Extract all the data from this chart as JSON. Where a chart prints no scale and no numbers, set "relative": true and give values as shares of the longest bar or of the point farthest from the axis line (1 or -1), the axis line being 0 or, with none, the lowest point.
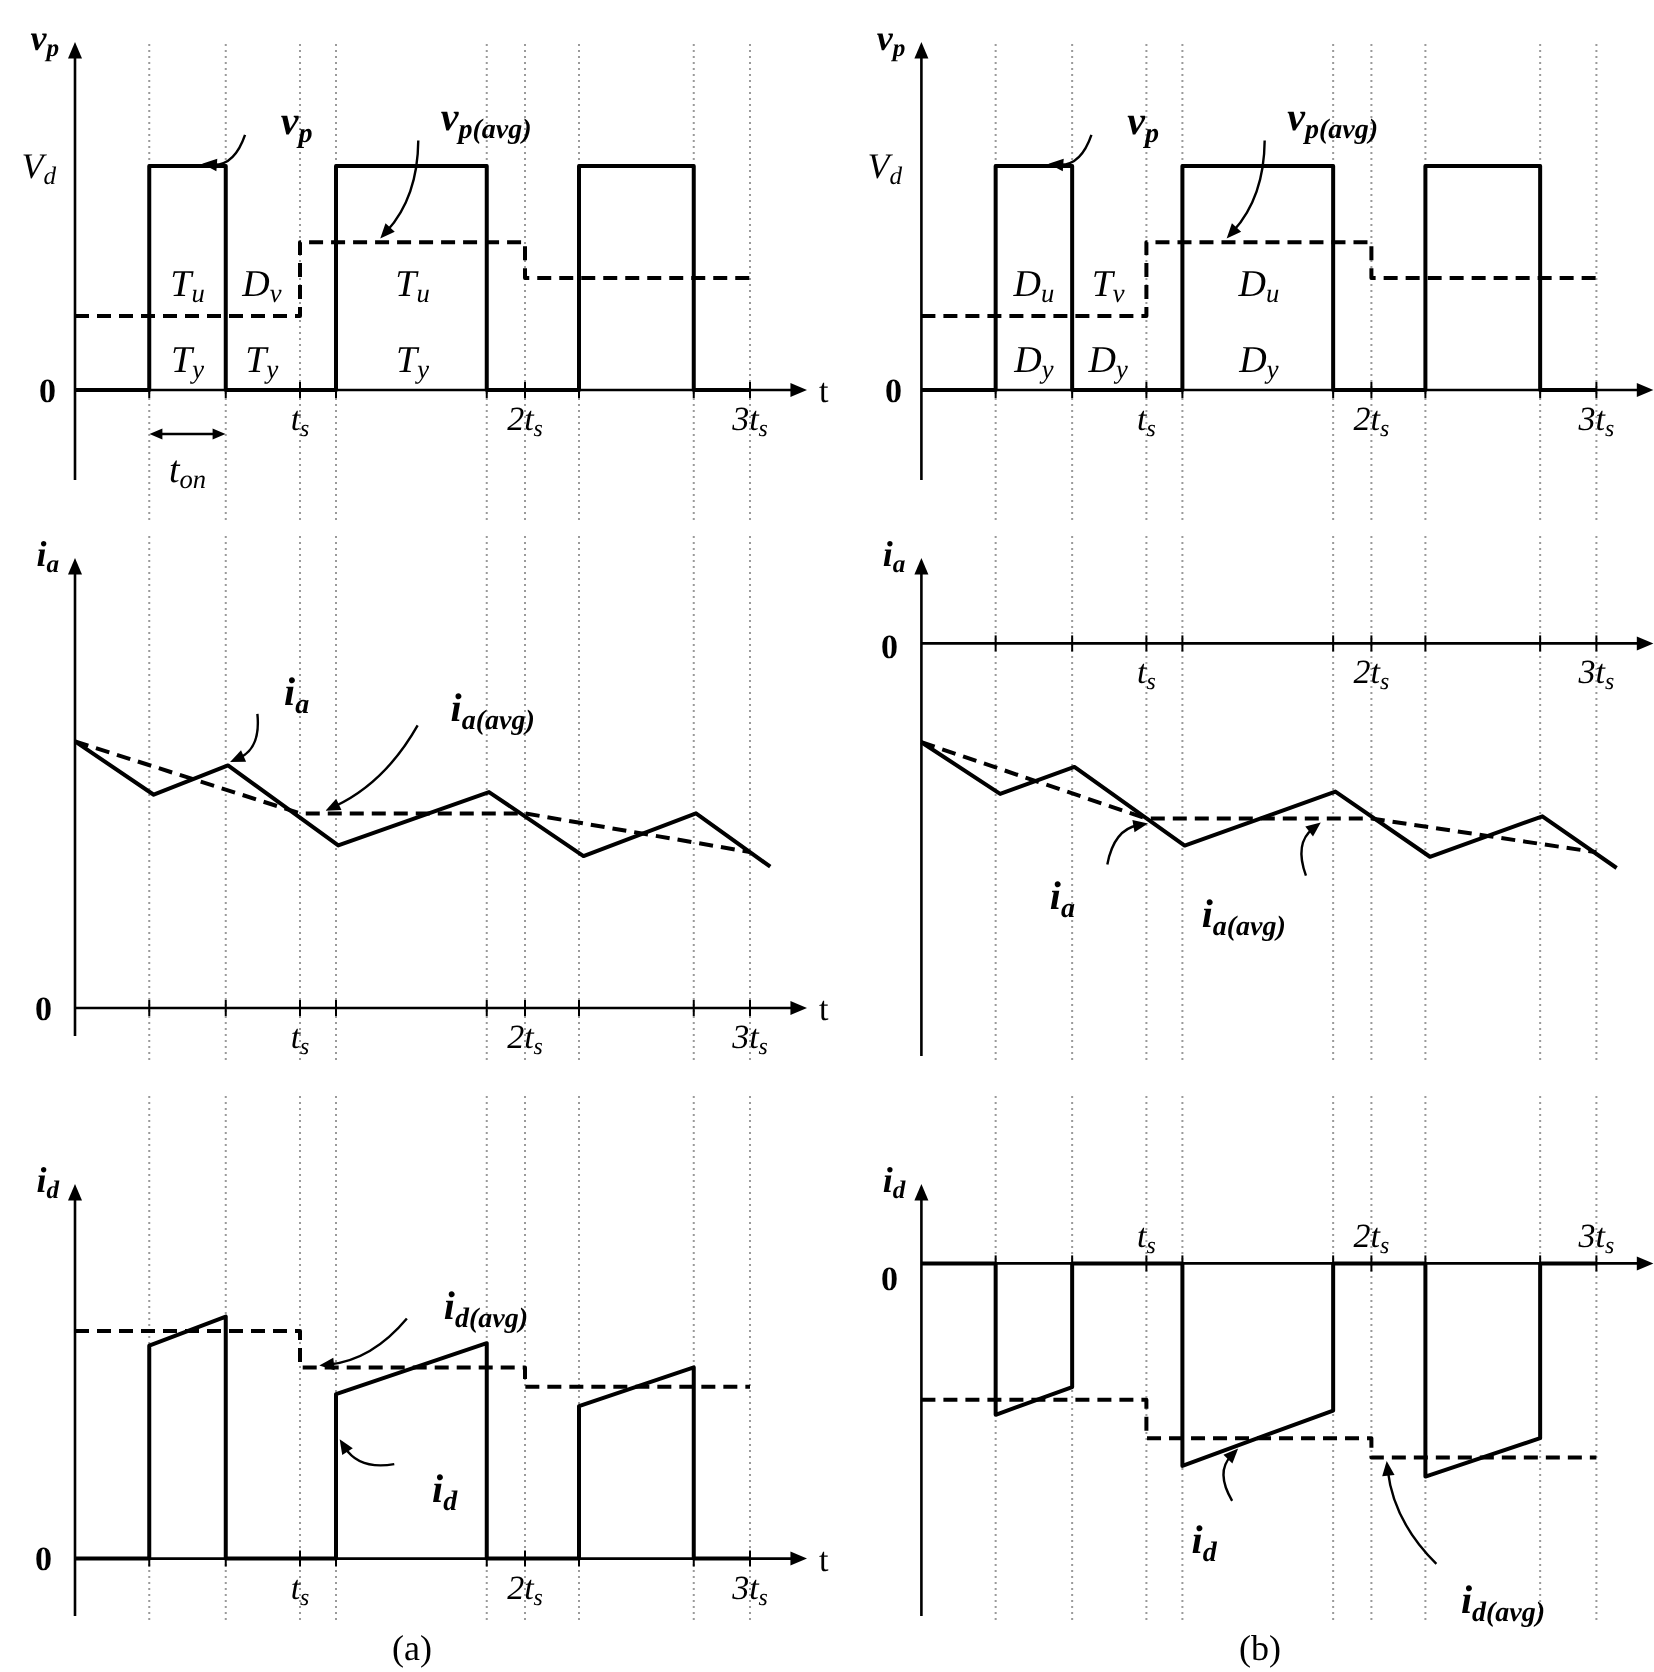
{
  "chart_data": [
    {
      "type": "line",
      "xlabel": "t",
      "ylabel": "v$_{p}$",
      "xlim": [
        0,
        3.2
      ],
      "relative": true,
      "grid": "x",
      "xticks": [
        {
          "value": 0.33,
          "label": null
        },
        {
          "value": 0.67,
          "label": null
        },
        {
          "value": 1,
          "label": "t$_{s}$"
        },
        {
          "value": 1.16,
          "label": null
        },
        {
          "value": 1.83,
          "label": null
        },
        {
          "value": 2,
          "label": "2t$_{s}$"
        },
        {
          "value": 2.24,
          "label": null
        },
        {
          "value": 2.75,
          "label": null
        },
        {
          "value": 3,
          "label": "3t$_{s}$"
        }
      ],
      "series": [
        {
          "color": "#000000",
          "line_style": "solid",
          "x": [
            0,
            0.33,
            0.33,
            0.67,
            0.67,
            1.16,
            1.16,
            1.83,
            1.83,
            2.24,
            2.24,
            2.75,
            2.75,
            3
          ],
          "values": [
            0,
            0,
            1,
            1,
            0,
            0,
            1,
            1,
            0,
            0,
            1,
            1,
            0,
            0
          ]
        },
        {
          "color": "#000000",
          "line_style": "dashed",
          "x": [
            0,
            1,
            1,
            2,
            2,
            3
          ],
          "values": [
            0.33,
            0.33,
            0.66,
            0.66,
            0.5,
            0.5
          ]
        }
      ],
      "annotations": [
        {
          "text": "v$_{p}$",
          "x": 0.55,
          "y": 1
        },
        {
          "text": "v$_{p(avg)}$",
          "x": 1.35,
          "y": 0.66
        },
        "V$_{d}$",
        "0",
        "T$_{u}$",
        "D$_{v}$",
        "T$_{u}$",
        "T$_{y}$",
        "T$_{y}$",
        "T$_{y}$",
        "t$_{on}$"
      ]
    },
    {
      "type": "line",
      "xlabel": "t",
      "ylabel": "i$_{a}$",
      "xlim": [
        0,
        3.2
      ],
      "relative": true,
      "grid": "x",
      "xticks": [
        {
          "value": 0.33,
          "label": null
        },
        {
          "value": 0.67,
          "label": null
        },
        {
          "value": 1,
          "label": "t$_{s}$"
        },
        {
          "value": 1.16,
          "label": null
        },
        {
          "value": 1.83,
          "label": null
        },
        {
          "value": 2,
          "label": "2t$_{s}$"
        },
        {
          "value": 2.24,
          "label": null
        },
        {
          "value": 2.75,
          "label": null
        },
        {
          "value": 3,
          "label": "3t$_{s}$"
        }
      ],
      "series": [
        {
          "color": "#000000",
          "line_style": "solid",
          "x": [
            0,
            0.35,
            0.68,
            1.17,
            1.84,
            2.26,
            2.76,
            3.09
          ],
          "values": [
            1,
            0.8,
            0.91,
            0.61,
            0.81,
            0.57,
            0.73,
            0.53
          ]
        },
        {
          "color": "#000000",
          "line_style": "dashed",
          "x": [
            0,
            1,
            2,
            3
          ],
          "values": [
            1,
            0.73,
            0.73,
            0.585
          ]
        }
      ],
      "annotations": [
        {
          "text": "i$_{a}$",
          "x": 0.68,
          "y": 0.91
        },
        {
          "text": "i$_{a(avg)}$",
          "x": 1.1,
          "y": 0.73
        },
        "0"
      ]
    },
    {
      "type": "line",
      "xlabel": "t",
      "ylabel": "i$_{d}$",
      "xlim": [
        0,
        3.2
      ],
      "relative": true,
      "grid": "x",
      "xticks": [
        {
          "value": 0.33,
          "label": null
        },
        {
          "value": 0.67,
          "label": null
        },
        {
          "value": 1,
          "label": "t$_{s}$"
        },
        {
          "value": 1.16,
          "label": null
        },
        {
          "value": 1.83,
          "label": null
        },
        {
          "value": 2,
          "label": "2t$_{s}$"
        },
        {
          "value": 2.24,
          "label": null
        },
        {
          "value": 2.75,
          "label": null
        },
        {
          "value": 3,
          "label": "3t$_{s}$"
        }
      ],
      "series": [
        {
          "color": "#000000",
          "line_style": "solid",
          "x": [
            0,
            0.33,
            0.33,
            0.67,
            0.67,
            1.16,
            1.16,
            1.83,
            1.83,
            2.24,
            2.24,
            2.75,
            2.75,
            3
          ],
          "values": [
            0,
            0,
            0.88,
            1,
            0,
            0,
            0.68,
            0.89,
            0,
            0,
            0.63,
            0.79,
            0,
            0
          ]
        },
        {
          "color": "#000000",
          "line_style": "dashed",
          "x": [
            0,
            1,
            1,
            2,
            2,
            3
          ],
          "values": [
            0.94,
            0.94,
            0.79,
            0.79,
            0.71,
            0.71
          ]
        }
      ],
      "annotations": [
        {
          "text": "i$_{d(avg)}$",
          "x": 1.07,
          "y": 0.79
        },
        {
          "text": "i$_{d}$",
          "x": 1.16,
          "y": 0.5
        },
        "0",
        "(a)"
      ]
    },
    {
      "type": "line",
      "ylabel": "v$_{p}$",
      "xlim": [
        0,
        3.2
      ],
      "relative": true,
      "grid": "x",
      "xticks": [
        {
          "value": 0.33,
          "label": null
        },
        {
          "value": 0.67,
          "label": null
        },
        {
          "value": 1,
          "label": "t$_{s}$"
        },
        {
          "value": 1.16,
          "label": null
        },
        {
          "value": 1.83,
          "label": null
        },
        {
          "value": 2,
          "label": "2t$_{s}$"
        },
        {
          "value": 2.24,
          "label": null
        },
        {
          "value": 2.75,
          "label": null
        },
        {
          "value": 3,
          "label": "3t$_{s}$"
        }
      ],
      "series": [
        {
          "color": "#000000",
          "line_style": "solid",
          "x": [
            0,
            0.33,
            0.33,
            0.67,
            0.67,
            1.16,
            1.16,
            1.83,
            1.83,
            2.24,
            2.24,
            2.75,
            2.75,
            3
          ],
          "values": [
            0,
            0,
            1,
            1,
            0,
            0,
            1,
            1,
            0,
            0,
            1,
            1,
            0,
            0
          ]
        },
        {
          "color": "#000000",
          "line_style": "dashed",
          "x": [
            0,
            1,
            1,
            2,
            2,
            3
          ],
          "values": [
            0.33,
            0.33,
            0.66,
            0.66,
            0.5,
            0.5
          ]
        }
      ],
      "annotations": [
        {
          "text": "v$_{p}$",
          "x": 0.55,
          "y": 1
        },
        {
          "text": "v$_{p(avg)}$",
          "x": 1.35,
          "y": 0.66
        },
        "V$_{d}$",
        "0",
        "D$_{u}$",
        "T$_{v}$",
        "D$_{u}$",
        "D$_{y}$",
        "D$_{y}$",
        "D$_{y}$"
      ]
    },
    {
      "type": "line",
      "ylabel": "i$_{a}$",
      "xlim": [
        0,
        3.2
      ],
      "relative": true,
      "grid": "x",
      "xticks": [
        {
          "value": 0.33,
          "label": null
        },
        {
          "value": 0.67,
          "label": null
        },
        {
          "value": 1,
          "label": "t$_{s}$"
        },
        {
          "value": 1.16,
          "label": null
        },
        {
          "value": 1.83,
          "label": null
        },
        {
          "value": 2,
          "label": "2t$_{s}$"
        },
        {
          "value": 2.24,
          "label": null
        },
        {
          "value": 2.75,
          "label": null
        },
        {
          "value": 3,
          "label": "3t$_{s}$"
        }
      ],
      "series": [
        {
          "color": "#000000",
          "line_style": "solid",
          "x": [
            0,
            0.35,
            0.68,
            1.17,
            1.84,
            2.26,
            2.76,
            3.09
          ],
          "values": [
            -0.44,
            -0.67,
            -0.55,
            -0.9,
            -0.66,
            -0.95,
            -0.77,
            -1
          ]
        },
        {
          "color": "#000000",
          "line_style": "dashed",
          "x": [
            0,
            1,
            2,
            3
          ],
          "values": [
            -0.44,
            -0.78,
            -0.78,
            -0.93
          ]
        }
      ],
      "annotations": [
        {
          "text": "i$_{a}$",
          "x": 1.02,
          "y": -0.79
        },
        {
          "text": "i$_{a(avg)}$",
          "x": 1.78,
          "y": -0.78
        },
        "0"
      ]
    },
    {
      "type": "line",
      "ylabel": "i$_{d}$",
      "xlim": [
        0,
        3.2
      ],
      "relative": true,
      "grid": "x",
      "xticks": [
        {
          "value": 0.33,
          "label": null
        },
        {
          "value": 0.67,
          "label": null
        },
        {
          "value": 1,
          "label": "t$_{s}$"
        },
        {
          "value": 1.16,
          "label": null
        },
        {
          "value": 1.83,
          "label": null
        },
        {
          "value": 2,
          "label": "2t$_{s}$"
        },
        {
          "value": 2.24,
          "label": null
        },
        {
          "value": 2.75,
          "label": null
        },
        {
          "value": 3,
          "label": "3t$_{s}$"
        }
      ],
      "series": [
        {
          "color": "#000000",
          "line_style": "solid",
          "x": [
            0,
            0.33,
            0.33,
            0.67,
            0.67,
            1.16,
            1.16,
            1.83,
            1.83,
            2.24,
            2.24,
            2.75,
            2.75,
            3
          ],
          "values": [
            0,
            0,
            -0.71,
            -0.58,
            0,
            0,
            -0.95,
            -0.69,
            0,
            0,
            -1,
            -0.82,
            0,
            0
          ]
        },
        {
          "color": "#000000",
          "line_style": "dashed",
          "x": [
            0,
            1,
            1,
            2,
            2,
            3
          ],
          "values": [
            -0.64,
            -0.64,
            -0.82,
            -0.82,
            -0.91,
            -0.91
          ]
        }
      ],
      "annotations": [
        {
          "text": "i$_{d}$",
          "x": 1.41,
          "y": -0.85
        },
        {
          "text": "i$_{d(avg)}$",
          "x": 2.06,
          "y": -0.91
        },
        "0",
        "(b)"
      ]
    }
  ]
}
